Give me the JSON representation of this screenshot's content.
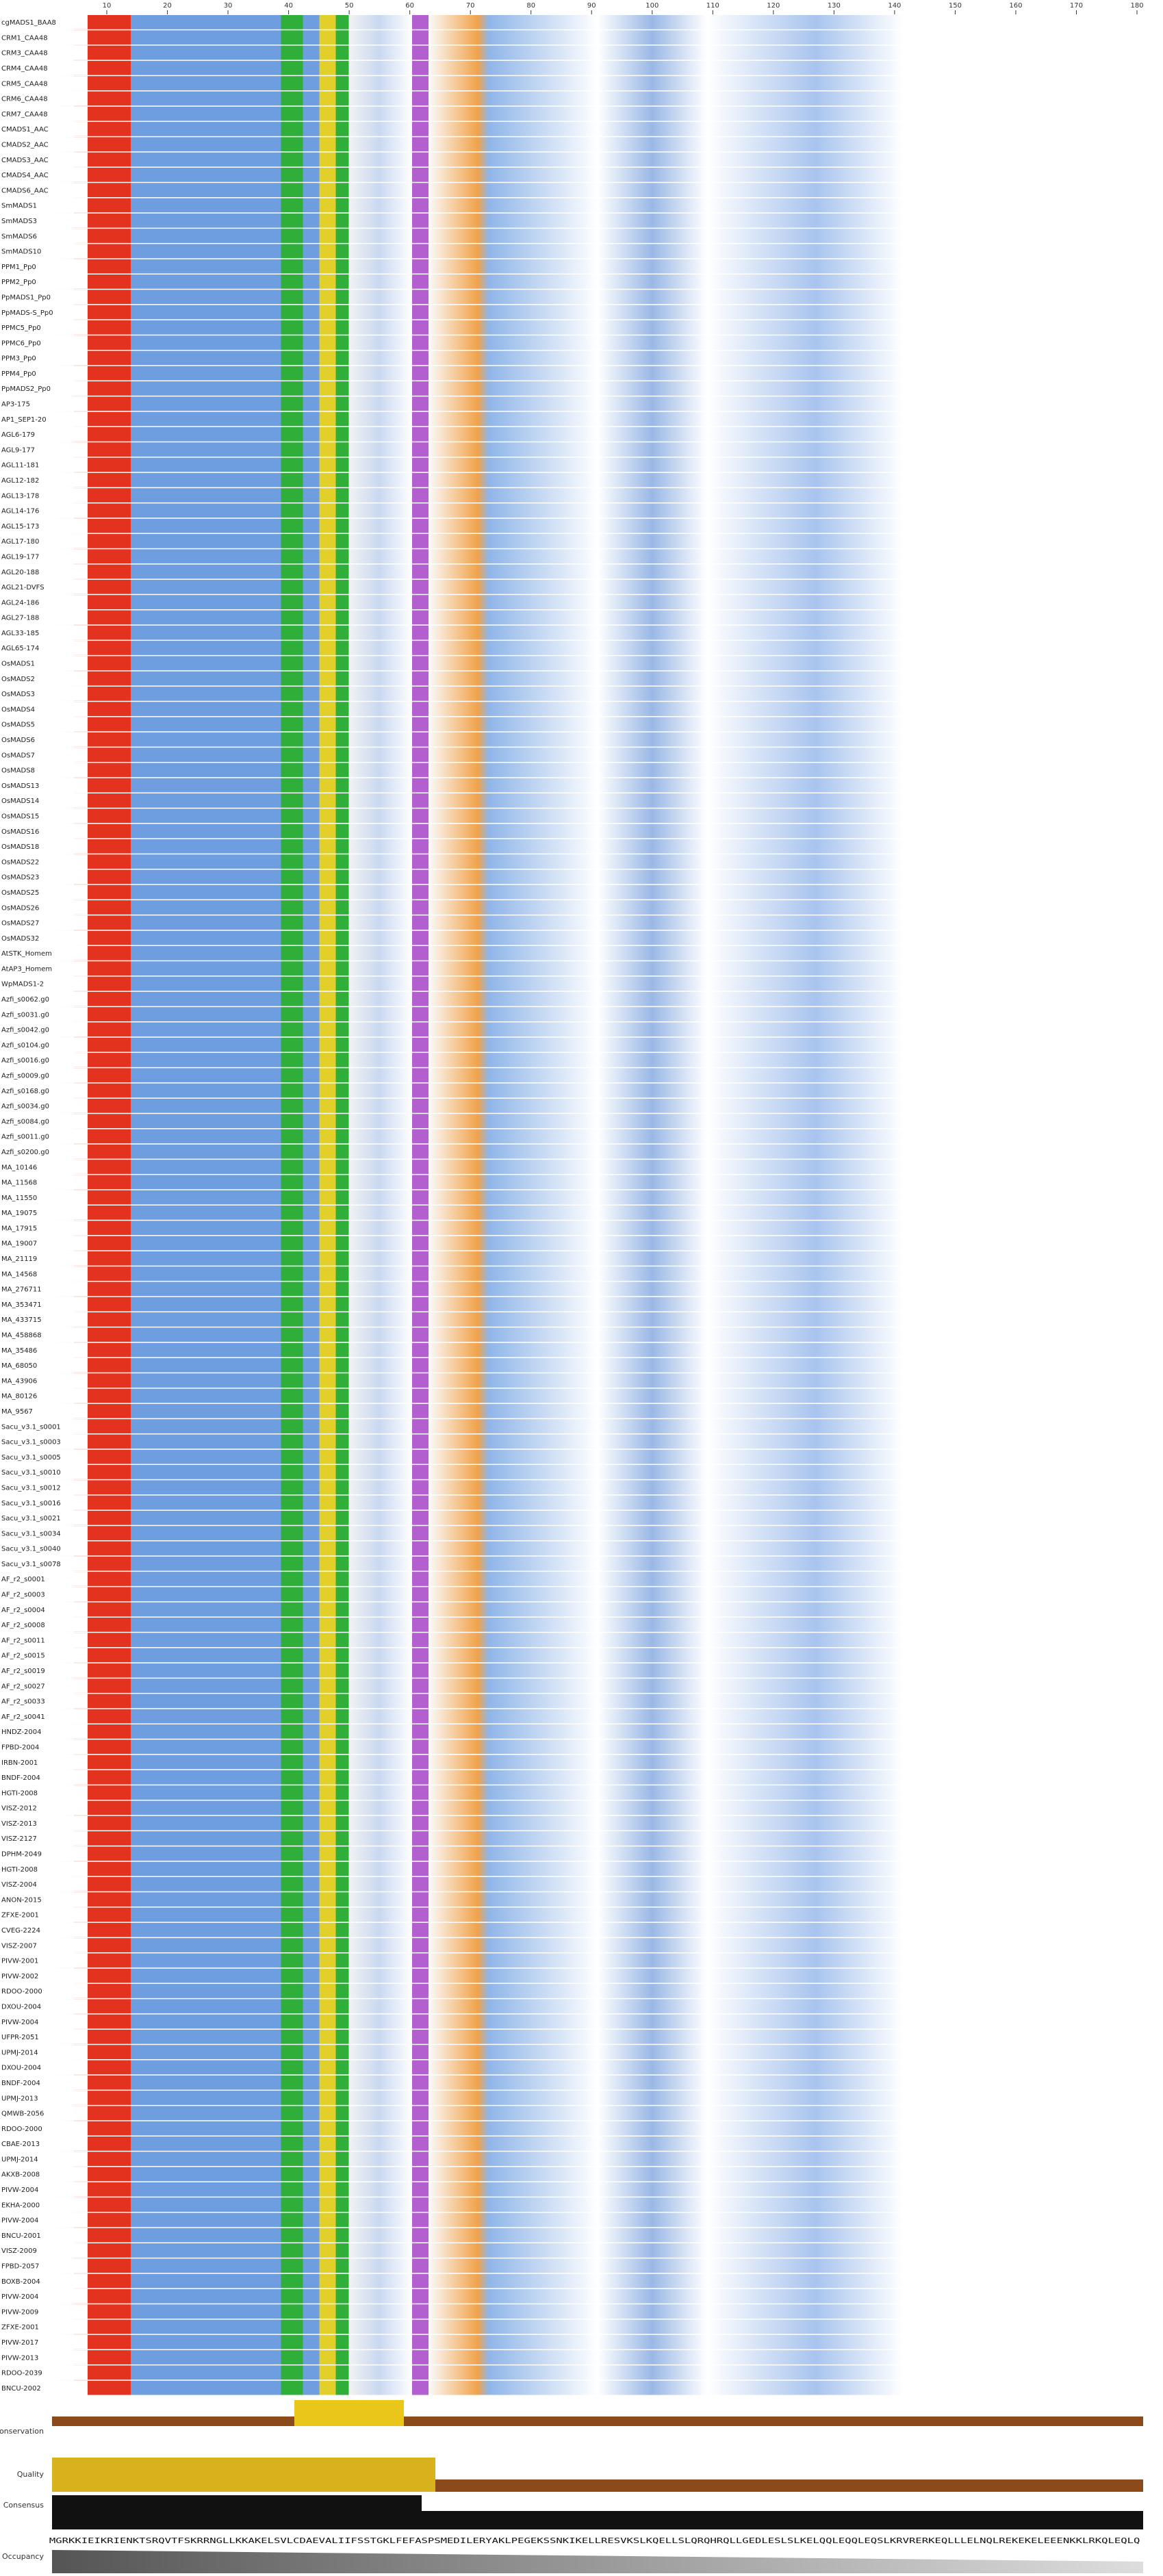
{
  "ruler": {
    "ticks": [
      10,
      20,
      30,
      40,
      50,
      60,
      70,
      80,
      90,
      100,
      110,
      120,
      130,
      140,
      150,
      160,
      170,
      180
    ]
  },
  "sequences": [
    "cgMADS1_BAA8",
    "CRM1_CAA48",
    "CRM3_CAA48",
    "CRM4_CAA48",
    "CRM5_CAA48",
    "CRM6_CAA48",
    "CRM7_CAA48",
    "CMADS1_AAC",
    "CMADS2_AAC",
    "CMADS3_AAC",
    "CMADS4_AAC",
    "CMADS6_AAC",
    "SmMADS1",
    "SmMADS3",
    "SmMADS6",
    "SmMADS10",
    "PPM1_Pp0",
    "PPM2_Pp0",
    "PpMADS1_Pp0",
    "PpMADS-S_Pp0",
    "PPMC5_Pp0",
    "PPMC6_Pp0",
    "PPM3_Pp0",
    "PPM4_Pp0",
    "PpMADS2_Pp0",
    "AP3-175",
    "AP1_SEP1-20",
    "AGL6-179",
    "AGL9-177",
    "AGL11-181",
    "AGL12-182",
    "AGL13-178",
    "AGL14-176",
    "AGL15-173",
    "AGL17-180",
    "AGL19-177",
    "AGL20-188",
    "AGL21-DVFS",
    "AGL24-186",
    "AGL27-188",
    "AGL33-185",
    "AGL65-174",
    "OsMADS1",
    "OsMADS2",
    "OsMADS3",
    "OsMADS4",
    "OsMADS5",
    "OsMADS6",
    "OsMADS7",
    "OsMADS8",
    "OsMADS13",
    "OsMADS14",
    "OsMADS15",
    "OsMADS16",
    "OsMADS18",
    "OsMADS22",
    "OsMADS23",
    "OsMADS25",
    "OsMADS26",
    "OsMADS27",
    "OsMADS32",
    "AtSTK_Homem",
    "AtAP3_Homem",
    "WpMADS1-2",
    "Azfi_s0062.g0",
    "Azfi_s0031.g0",
    "Azfi_s0042.g0",
    "Azfi_s0104.g0",
    "Azfi_s0016.g0",
    "Azfi_s0009.g0",
    "Azfi_s0168.g0",
    "Azfi_s0034.g0",
    "Azfi_s0084.g0",
    "Azfi_s0011.g0",
    "Azfi_s0200.g0",
    "MA_10146",
    "MA_11568",
    "MA_11550",
    "MA_19075",
    "MA_17915",
    "MA_19007",
    "MA_21119",
    "MA_14568",
    "MA_276711",
    "MA_353471",
    "MA_433715",
    "MA_458868",
    "MA_35486",
    "MA_68050",
    "MA_43906",
    "MA_80126",
    "MA_9567",
    "Sacu_v3.1_s0001",
    "Sacu_v3.1_s0003",
    "Sacu_v3.1_s0005",
    "Sacu_v3.1_s0010",
    "Sacu_v3.1_s0012",
    "Sacu_v3.1_s0016",
    "Sacu_v3.1_s0021",
    "Sacu_v3.1_s0034",
    "Sacu_v3.1_s0040",
    "Sacu_v3.1_s0078",
    "AF_r2_s0001",
    "AF_r2_s0003",
    "AF_r2_s0004",
    "AF_r2_s0008",
    "AF_r2_s0011",
    "AF_r2_s0015",
    "AF_r2_s0019",
    "AF_r2_s0027",
    "AF_r2_s0033",
    "AF_r2_s0041",
    "HNDZ-2004",
    "FPBD-2004",
    "IRBN-2001",
    "BNDF-2004",
    "HGTI-2008",
    "VISZ-2012",
    "VISZ-2013",
    "VISZ-2127",
    "DPHM-2049",
    "HGTI-2008",
    "VISZ-2004",
    "ANON-2015",
    "ZFXE-2001",
    "CVEG-2224",
    "VISZ-2007",
    "PIVW-2001",
    "PIVW-2002",
    "RDOO-2000",
    "DXOU-2004",
    "PIVW-2004",
    "UFPR-2051",
    "UPMJ-2014",
    "DXOU-2004",
    "BNDF-2004",
    "UPMJ-2013",
    "QMWB-2056",
    "RDOO-2000",
    "CBAE-2013",
    "UPMJ-2014",
    "AKXB-2008",
    "PIVW-2004",
    "EKHA-2000",
    "PIVW-2004",
    "BNCU-2001",
    "VISZ-2009",
    "FPBD-2057",
    "BOXB-2004",
    "PIVW-2004",
    "PIVW-2009",
    "ZFXE-2001",
    "PIVW-2017",
    "PIVW-2013",
    "RDOO-2039",
    "BNCU-2002"
  ],
  "annotations": {
    "conservation": "Conservation",
    "quality": "Quality",
    "consensus": "Consensus",
    "occupancy": "Occupancy"
  },
  "consensus_sequence": "MGRKKIEIKRIENKTSRQVTFSKRRNGLLKKAKELSVLCDAEVALIIFSSTGKLFEFASPSMEDILERYAKLPEGEKSSNKIKELLRESVKSLKQELLSLQRQHRQLLGEDLESLSLKELQQLEQQLEQSLKRVRERKEQLLLELNQLREKEKELEEENKKLRKQLEQLQ"
}
